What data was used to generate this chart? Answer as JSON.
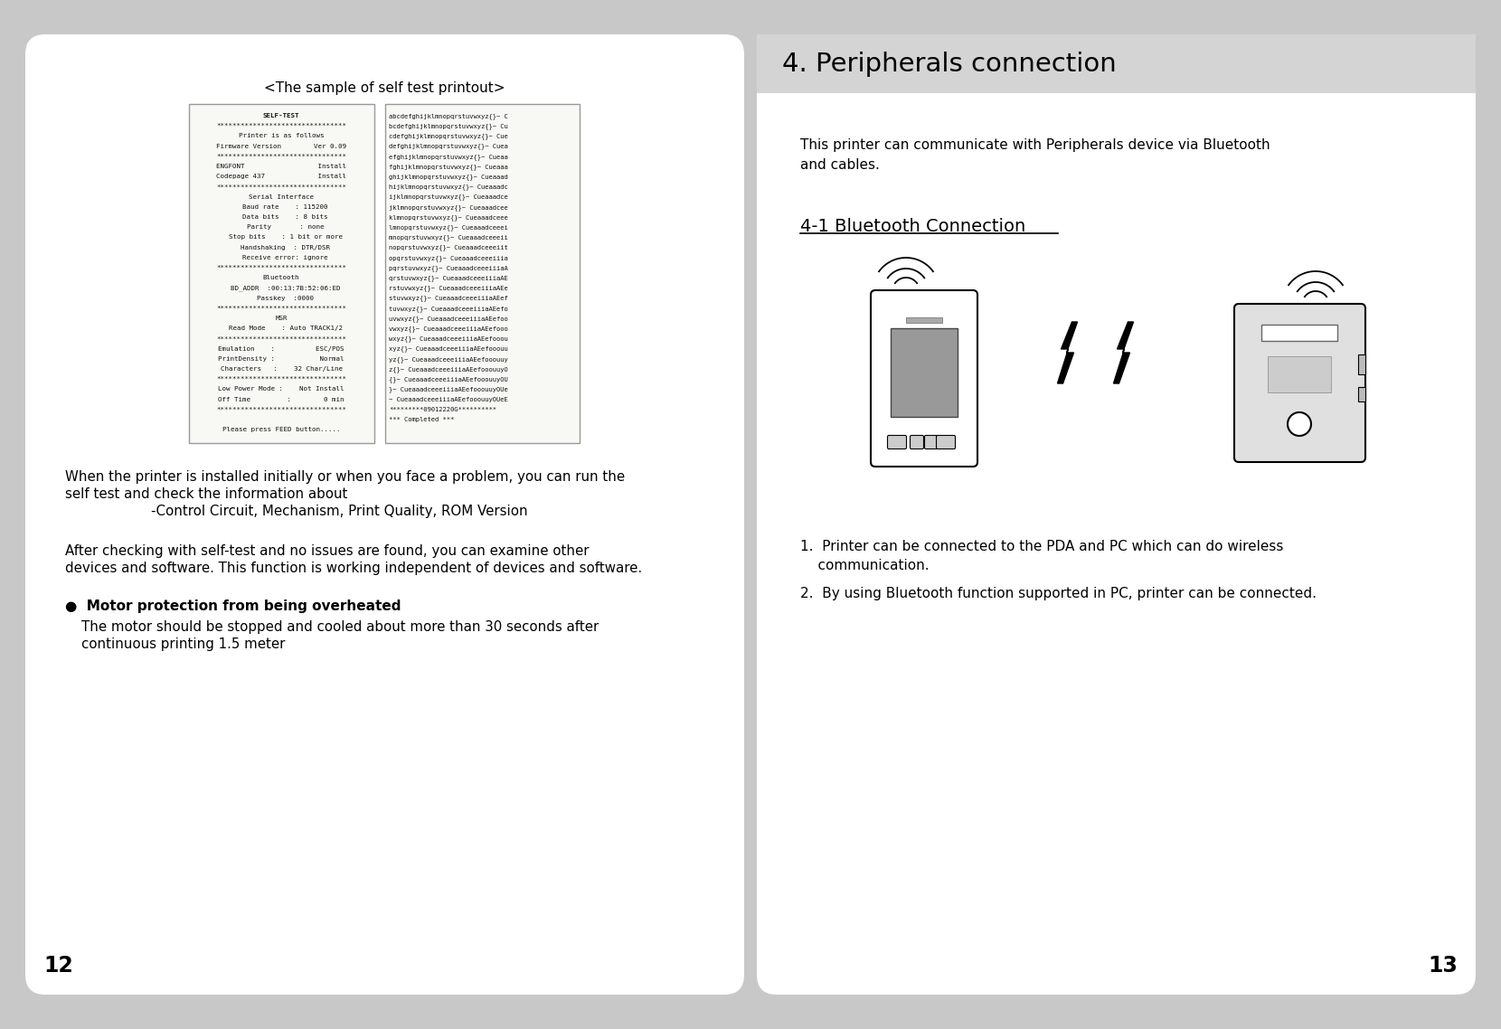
{
  "background_color": "#c8c8c8",
  "page_bg": "#ffffff",
  "left_page_num": "12",
  "right_page_num": "13",
  "right_title": "4. Peripherals connection",
  "right_subtitle": "4-1 Bluetooth Connection",
  "right_intro": "This printer can communicate with Peripherals device via Bluetooth\nand cables.",
  "right_list_1": "1.  Printer can be connected to the PDA and PC which can do wireless\n    communication.",
  "right_list_2": "2.  By using Bluetooth function supported in PC, printer can be connected.",
  "left_caption": "<The sample of self test printout>",
  "left_para1_line1": "When the printer is installed initially or when you face a problem, you can run the",
  "left_para1_line2": "self test and check the information about",
  "left_para1_line3": "                    -Control Circuit, Mechanism, Print Quality, ROM Version",
  "left_para2_line1": "After checking with self-test and no issues are found, you can examine other",
  "left_para2_line2": "devices and software. This function is working independent of devices and software.",
  "left_bullet_title": "●  Motor protection from being overheated",
  "left_bullet_body_1": "The motor should be stopped and cooled about more than 30 seconds after",
  "left_bullet_body_2": "continuous printing 1.5 meter",
  "self_test_left": [
    "SELF-TEST",
    "********************************",
    "Printer is as follows",
    "Firmware Version        Ver 0.09",
    "********************************",
    "ENGFONT                  Install",
    "Codepage 437             Install",
    "********************************",
    "Serial Interface",
    "  Baud rate    : 115200",
    "  Data bits    : 8 bits",
    "  Parity       : none",
    "  Stop bits    : 1 bit or more",
    "  Handshaking  : DTR/DSR",
    "  Receive error: ignore",
    "********************************",
    "Bluetooth",
    "  BD_ADDR  :00:13:7B:52:06:ED",
    "  Passkey  :0000",
    "********************************",
    "MSR",
    "  Read Mode    : Auto TRACK1/2",
    "********************************",
    "Emulation    :          ESC/POS",
    "PrintDensity :           Normal",
    "Characters   :    32 Char/Line",
    "********************************",
    "Low Power Mode :    Not Install",
    "Off Time         :        0 min",
    "********************************",
    "",
    "Please press FEED button....."
  ],
  "self_test_right_lines": [
    "abcdefghijklmnopqrstuvwxyz{}~ C",
    "bcdefghijklmnopqrstuvwxyz{}~ Cu",
    "cdefghijklmnopqrstuvwxyz{}~ Cue",
    "defghijklmnopqrstuvwxyz{}~ Cuea",
    "efghijklmnopqrstuvwxyz{}~ Cueaa",
    "fghijklmnopqrstuvwxyz{}~ Cueaaa",
    "ghijklmnopqrstuvwxyz{}~ Cueaaad",
    "hijklmnopqrstuvwxyz{}~ Cueaaadc",
    "ijklmnopqrstuvwxyz{}~ Cueaaadce",
    "jklmnopqrstuvwxyz{}~ Cueaaadcee",
    "klmnopqrstuvwxyz{}~ Cueaaadceee",
    "lmnopqrstuvwxyz{}~ Cueaaadceeei",
    "mnopqrstuvwxyz{}~ Cueaaadceeeii",
    "nopqrstuvwxyz{}~ Cueaaadceeeiit",
    "opqrstuvwxyz{}~ Cueaaadceeeiiia",
    "pqrstuvwxyz{}~ CueaaadceeeiiiaA",
    "qrstuvwxyz{}~ CueaaadceeeiiiaAE",
    "rstuvwxyz{}~ CueaaadceeeiiiaAEe",
    "stuvwxyz{}~ CueaaadceeeiiiaAEef",
    "tuvwxyz{}~ CueaaadceeeiiiaAEefo",
    "uvwxyz{}~ CueaaadceeeiiiaAEefoo",
    "vwxyz{}~ CueaaadceeeiiiaAEefooo",
    "wxyz{}~ CueaaadceeeiiiaAEefooou",
    "xyz{}~ CueaaadceeeiiiaAEefooouu",
    "yz{}~ CueaaadceeeiiiaAEefooouuy",
    "z{}~ CueaaadceeeiiiaAEefooouuyO",
    "{}~ CueaaadceeeiiiaAEefooouuyOU",
    "}~ CueaaadceeeiiiaAEefooouuyOUe",
    "~ CueaaadceeeiiiaAEefooouuyOUeE",
    "*********09012220G**********",
    "*** Completed ***"
  ]
}
